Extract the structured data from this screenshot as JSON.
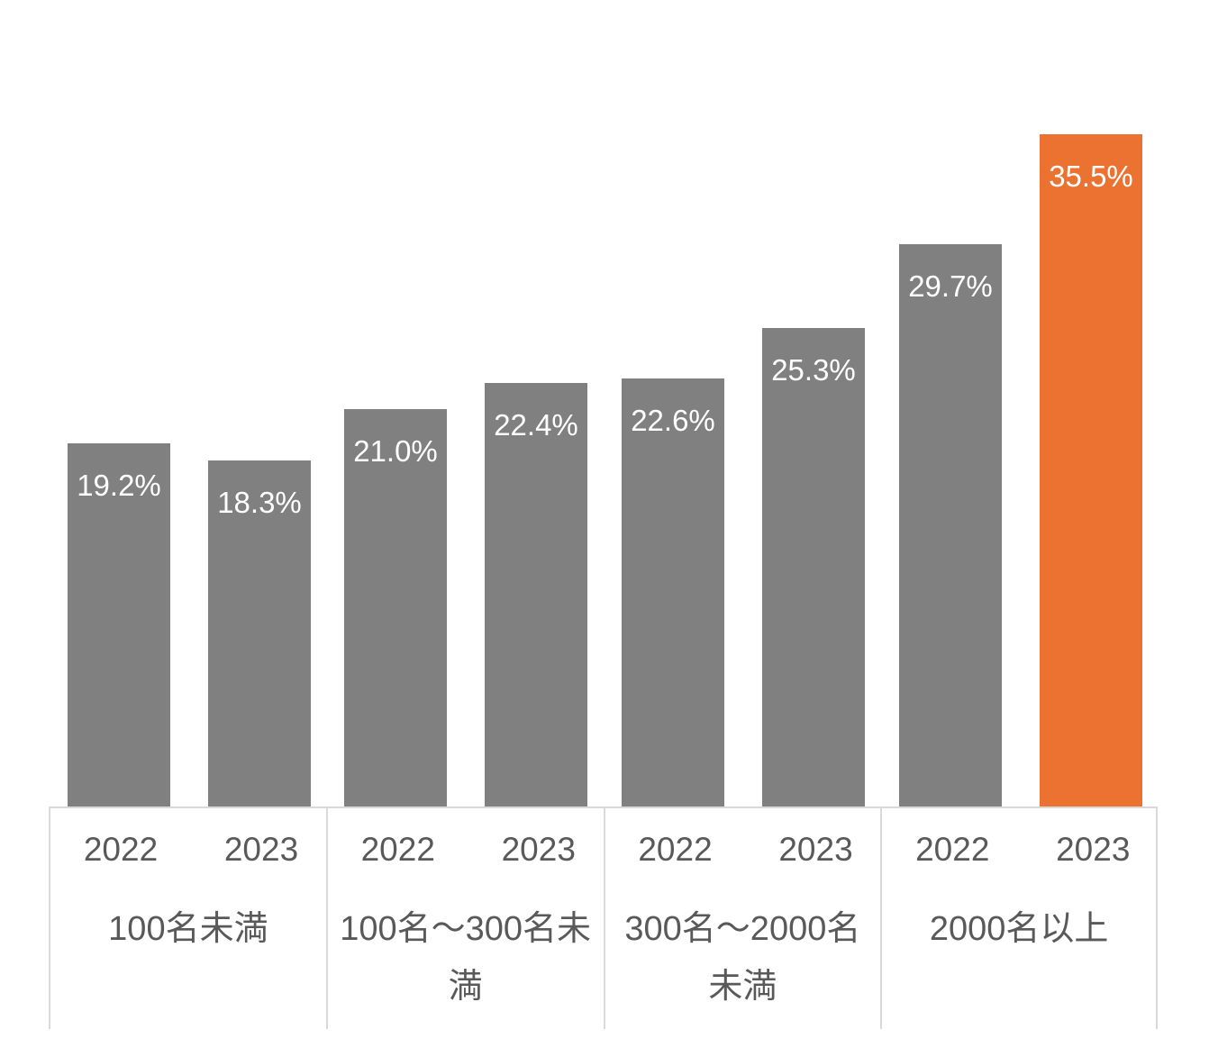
{
  "chart_data": {
    "type": "bar",
    "title": "",
    "xlabel": "",
    "ylabel": "",
    "legend": "none",
    "grid": false,
    "y_axis_visible": false,
    "ylim": [
      0,
      42.6
    ],
    "categories_per_group": [
      "2022",
      "2023"
    ],
    "groups": [
      {
        "label": "100名未満",
        "bars": [
          {
            "year": "2022",
            "value": 19.2,
            "display": "19.2%",
            "highlighted": false
          },
          {
            "year": "2023",
            "value": 18.3,
            "display": "18.3%",
            "highlighted": false
          }
        ]
      },
      {
        "label": "100名〜300名未満",
        "bars": [
          {
            "year": "2022",
            "value": 21.0,
            "display": "21.0%",
            "highlighted": false
          },
          {
            "year": "2023",
            "value": 22.4,
            "display": "22.4%",
            "highlighted": false
          }
        ]
      },
      {
        "label": "300名〜2000名未満",
        "bars": [
          {
            "year": "2022",
            "value": 22.6,
            "display": "22.6%",
            "highlighted": false
          },
          {
            "year": "2023",
            "value": 25.3,
            "display": "25.3%",
            "highlighted": false
          }
        ]
      },
      {
        "label": "2000名以上",
        "bars": [
          {
            "year": "2022",
            "value": 29.7,
            "display": "29.7%",
            "highlighted": false
          },
          {
            "year": "2023",
            "value": 35.5,
            "display": "35.5%",
            "highlighted": true
          }
        ]
      }
    ],
    "colors": {
      "bar": "#808080",
      "highlight": "#EB7231",
      "value_label_text": "#FFFFFF",
      "axis_text": "#595959",
      "axis_line": "#D9D9D9",
      "background": "#FFFFFF"
    }
  }
}
